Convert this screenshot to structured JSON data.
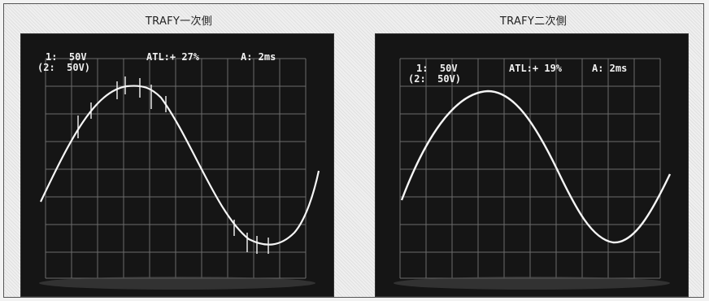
{
  "panels": [
    {
      "caption": "TRAFY一次側",
      "ch1": "1:  50V",
      "atl": "ATL:+ 27%",
      "timebase": "A: 2ms",
      "ch2": "(2:  50V)"
    },
    {
      "caption": "TRAFY二次側",
      "ch1": "1:  50V",
      "atl": "ATL:+ 19%",
      "timebase": "A: 2ms",
      "ch2": "(2:  50V)"
    }
  ],
  "colors": {
    "screen": "#151515",
    "trace": "#f5f5f5",
    "grid": "#8a8a8a"
  }
}
